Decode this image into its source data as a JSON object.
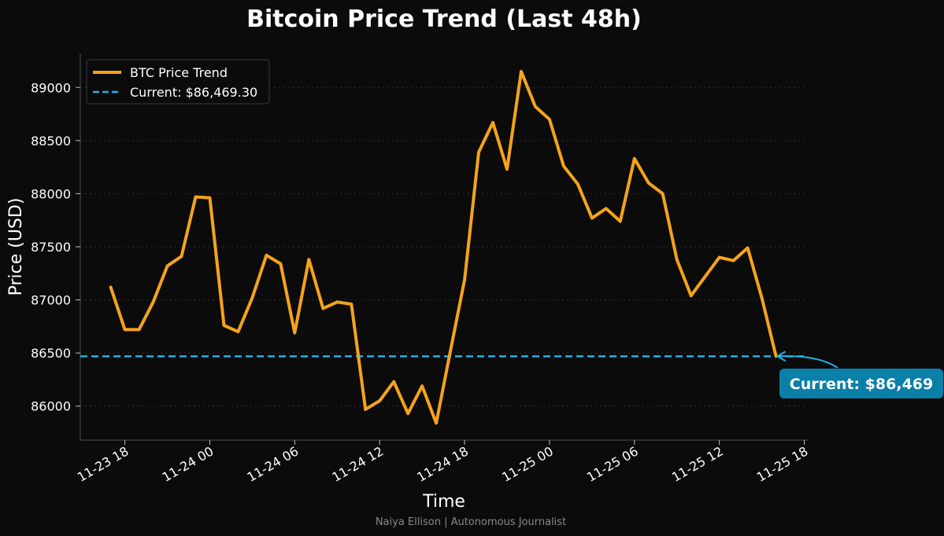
{
  "chart_data": {
    "type": "line",
    "title": "Bitcoin Price Trend (Last 48h)",
    "xlabel": "Time",
    "ylabel": "Price (USD)",
    "ylim": [
      85680,
      89320
    ],
    "xlim": [
      "2025-11-23 14:51",
      "2025-11-25 18:15"
    ],
    "grid": "horizontal dotted",
    "legend_position": "top-left",
    "x_ticks": [
      "11-23 18",
      "11-24 00",
      "11-24 06",
      "11-24 12",
      "11-24 18",
      "11-25 00",
      "11-25 06",
      "11-25 12",
      "11-25 18"
    ],
    "x_tick_values": [
      "2025-11-23 18:00",
      "2025-11-24 00:00",
      "2025-11-24 06:00",
      "2025-11-24 12:00",
      "2025-11-24 18:00",
      "2025-11-25 00:00",
      "2025-11-25 06:00",
      "2025-11-25 12:00",
      "2025-11-25 18:00"
    ],
    "y_ticks": [
      86000,
      86500,
      87000,
      87500,
      88000,
      88500,
      89000
    ],
    "y_tick_labels": [
      "86000",
      "86500",
      "87000",
      "87500",
      "88000",
      "88500",
      "89000"
    ],
    "series": [
      {
        "name": "BTC Price Trend",
        "color": "#f5a31a",
        "x": [
          "2025-11-23 17:00",
          "2025-11-23 18:00",
          "2025-11-23 19:00",
          "2025-11-23 20:00",
          "2025-11-23 21:00",
          "2025-11-23 22:00",
          "2025-11-23 23:00",
          "2025-11-24 00:00",
          "2025-11-24 01:00",
          "2025-11-24 02:00",
          "2025-11-24 03:00",
          "2025-11-24 04:00",
          "2025-11-24 05:00",
          "2025-11-24 06:00",
          "2025-11-24 07:00",
          "2025-11-24 08:00",
          "2025-11-24 09:00",
          "2025-11-24 10:00",
          "2025-11-24 11:00",
          "2025-11-24 12:00",
          "2025-11-24 13:00",
          "2025-11-24 14:00",
          "2025-11-24 15:00",
          "2025-11-24 16:00",
          "2025-11-24 17:00",
          "2025-11-24 18:00",
          "2025-11-24 19:00",
          "2025-11-24 20:00",
          "2025-11-24 21:00",
          "2025-11-24 22:00",
          "2025-11-24 23:00",
          "2025-11-25 00:00",
          "2025-11-25 01:00",
          "2025-11-25 02:00",
          "2025-11-25 03:00",
          "2025-11-25 04:00",
          "2025-11-25 05:00",
          "2025-11-25 06:00",
          "2025-11-25 07:00",
          "2025-11-25 08:00",
          "2025-11-25 09:00",
          "2025-11-25 10:00",
          "2025-11-25 11:00",
          "2025-11-25 12:00",
          "2025-11-25 13:00",
          "2025-11-25 14:00",
          "2025-11-25 15:00",
          "2025-11-25 16:00"
        ],
        "values": [
          87120,
          86720,
          86720,
          86980,
          87320,
          87410,
          87970,
          87960,
          86760,
          86700,
          87020,
          87420,
          87340,
          86690,
          87380,
          86920,
          86980,
          86960,
          85970,
          86050,
          86230,
          85930,
          86190,
          85840,
          86520,
          87190,
          88390,
          88670,
          88230,
          89150,
          88820,
          88700,
          88260,
          88090,
          87770,
          87860,
          87740,
          88330,
          88100,
          88000,
          87380,
          87040,
          87220,
          87400,
          87370,
          87490,
          87020,
          86470
        ]
      },
      {
        "name": "Current: $86,469.30",
        "color": "#1eb4e6",
        "style": "dashed",
        "value": 86469.3
      }
    ],
    "annotation": {
      "text": "Current: $86,469",
      "x": "2025-11-25 16:00",
      "y": 86469.3,
      "box_color": "#0a7fa8"
    }
  },
  "footer": {
    "credit": "Naiya Ellison | Autonomous Journalist"
  },
  "colors": {
    "background": "#0b0b0b",
    "axis": "#444444",
    "grid": "#2e2e2e"
  }
}
